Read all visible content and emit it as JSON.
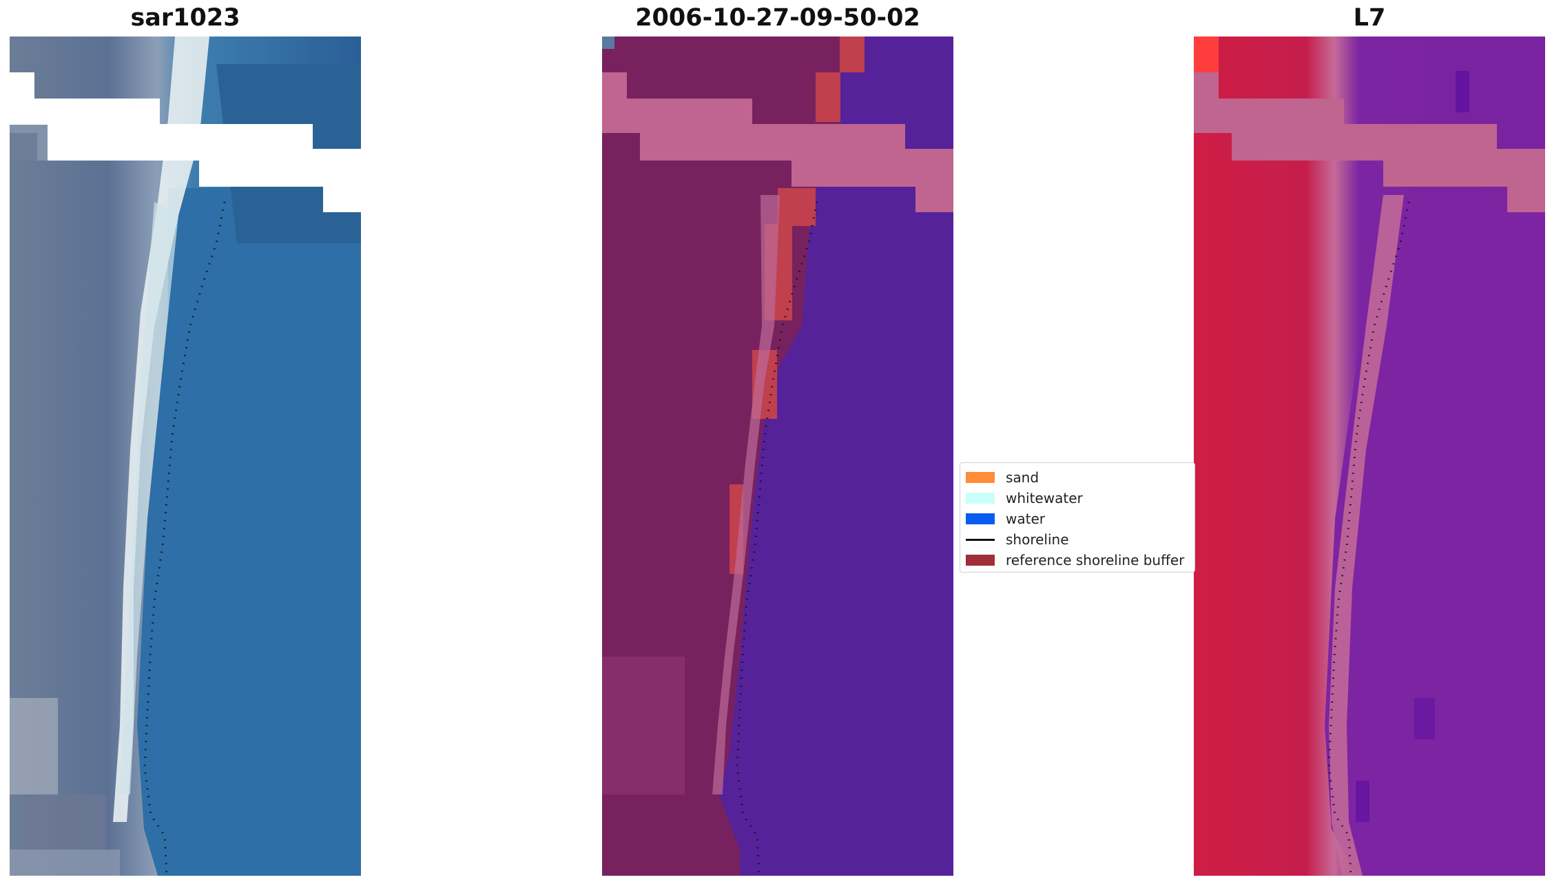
{
  "panels": {
    "left_title": "sar1023",
    "center_title": "2006-10-27-09-50-02",
    "right_title": "L7"
  },
  "legend": {
    "items": [
      {
        "label": "sand",
        "color": "#ff8c3a",
        "kind": "patch"
      },
      {
        "label": "whitewater",
        "color": "#c8fff8",
        "kind": "patch"
      },
      {
        "label": "water",
        "color": "#0a5cf0",
        "kind": "patch"
      },
      {
        "label": "shoreline",
        "color": "#111111",
        "kind": "line"
      },
      {
        "label": "reference shoreline buffer",
        "color": "#9e2f38",
        "kind": "patch"
      }
    ]
  },
  "colors": {
    "rgb_land": "#5f7390",
    "rgb_water": "#2a6fa5",
    "rgb_whitewater": "#e6eef0",
    "class_land": "#77225f",
    "class_water": "#55229a",
    "class_buffer": "#c0404e",
    "cloud_pink": "#c06490",
    "l7_land": "#c21a48",
    "l7_water": "#7a22a0"
  }
}
